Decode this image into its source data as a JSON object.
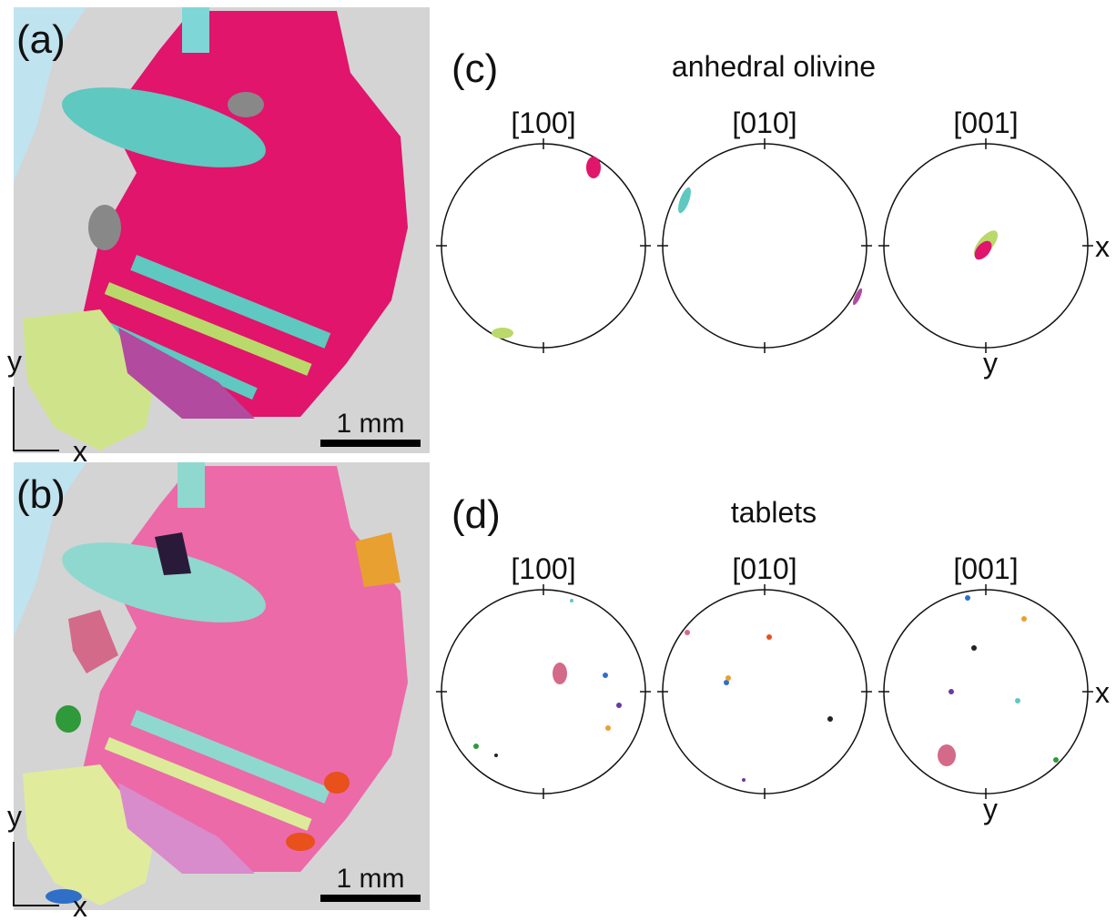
{
  "map_a": {
    "label": "(a)",
    "axis_y": "y",
    "axis_x": "x",
    "scale_bar": "1 mm"
  },
  "map_b": {
    "label": "(b)",
    "axis_y": "y",
    "axis_x": "x",
    "scale_bar": "1 mm"
  },
  "pole_c": {
    "label": "(c)",
    "title": "anhedral olivine",
    "headers": [
      "[100]",
      "[010]",
      "[001]"
    ],
    "axis_x": "x",
    "axis_y": "y"
  },
  "pole_d": {
    "label": "(d)",
    "title": "tablets",
    "headers": [
      "[100]",
      "[010]",
      "[001]"
    ],
    "axis_x": "x",
    "axis_y": "y"
  }
}
